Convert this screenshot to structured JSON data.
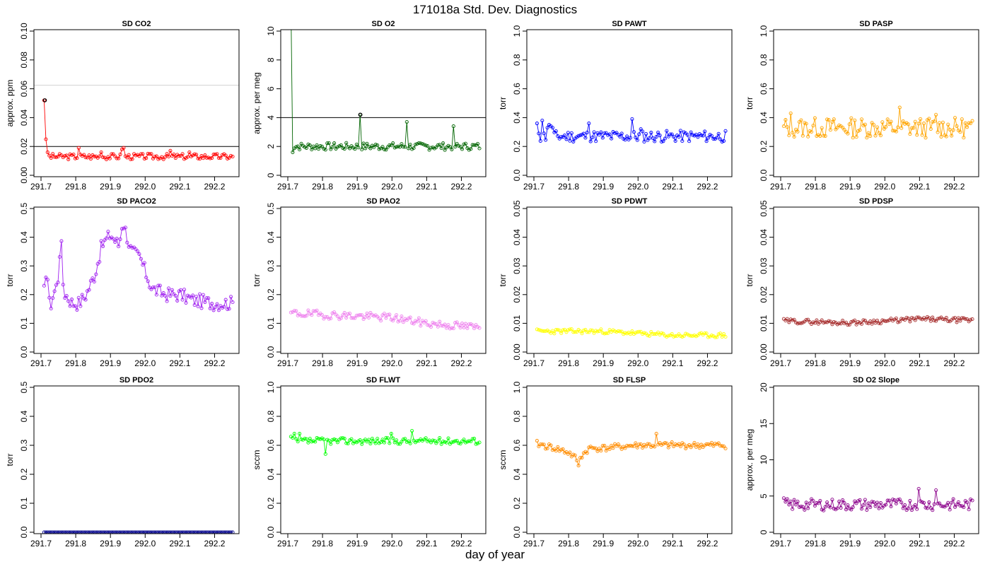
{
  "figure": {
    "title": "171018a   Std. Dev. Diagnostics",
    "xlabel": "day of year"
  },
  "chart_data": [
    {
      "type": "scatter",
      "title": "SD CO2",
      "xlabel": "",
      "ylabel": "approx. ppm",
      "xlim": [
        291.7,
        292.25
      ],
      "xticks": [
        291.7,
        291.8,
        291.9,
        292.0,
        292.1,
        292.2
      ],
      "ylim": [
        0,
        0.1
      ],
      "yticks": [
        0.0,
        0.02,
        0.04,
        0.06,
        0.08,
        0.1
      ],
      "ydecimals": 2,
      "color": "#ff0000",
      "connect": true,
      "hlines": [
        {
          "value": 0.02,
          "color": "#000000"
        },
        {
          "value": 0.0625,
          "color": "#d3d3d3"
        }
      ],
      "highlight": [
        {
          "x": 291.711,
          "y": 0.052
        }
      ],
      "series": [
        {
          "base": 0.013,
          "amp": 0.002,
          "n": 110,
          "spikes": [
            [
              0,
              0.052
            ],
            [
              1,
              0.025
            ],
            [
              2,
              0.016
            ],
            [
              20,
              0.019
            ],
            [
              33,
              0.016
            ],
            [
              45,
              0.018
            ],
            [
              46,
              0.019
            ],
            [
              60,
              0.015
            ],
            [
              73,
              0.017
            ],
            [
              84,
              0.016
            ]
          ],
          "seed": 3
        }
      ]
    },
    {
      "type": "scatter",
      "title": "SD O2",
      "xlabel": "",
      "ylabel": "approx. per meg",
      "xlim": [
        291.7,
        292.25
      ],
      "xticks": [
        291.7,
        291.8,
        291.9,
        292.0,
        292.1,
        292.2
      ],
      "ylim": [
        0,
        10
      ],
      "yticks": [
        0,
        2,
        4,
        6,
        8,
        10
      ],
      "ydecimals": 0,
      "color": "#006400",
      "connect": true,
      "hlines": [
        {
          "value": 4,
          "color": "#000000"
        }
      ],
      "highlight": [
        {
          "x": 291.909,
          "y": 4.2
        }
      ],
      "series": [
        {
          "base": 2.0,
          "amp": 0.25,
          "n": 110,
          "spikes": [
            [
              0,
              12
            ],
            [
              1,
              1.6
            ],
            [
              40,
              4.2
            ],
            [
              67,
              3.7
            ],
            [
              94,
              3.4
            ]
          ],
          "seed": 7
        }
      ]
    },
    {
      "type": "scatter",
      "title": "SD PAWT",
      "xlabel": "",
      "ylabel": "torr",
      "xlim": [
        291.7,
        292.25
      ],
      "xticks": [
        291.7,
        291.8,
        291.9,
        292.0,
        292.1,
        292.2
      ],
      "ylim": [
        0,
        1
      ],
      "yticks": [
        0.0,
        0.2,
        0.4,
        0.6,
        0.8,
        1.0
      ],
      "ydecimals": 1,
      "color": "#0000ff",
      "connect": true,
      "hlines": [],
      "highlight": [],
      "series": [
        {
          "base": 0.27,
          "amp": 0.04,
          "n": 110,
          "spikes": [
            [
              0,
              0.36
            ],
            [
              1,
              0.29
            ],
            [
              3,
              0.38
            ],
            [
              6,
              0.33
            ],
            [
              7,
              0.35
            ],
            [
              8,
              0.34
            ],
            [
              9,
              0.33
            ],
            [
              30,
              0.36
            ],
            [
              55,
              0.39
            ],
            [
              60,
              0.32
            ]
          ],
          "seed": 11
        }
      ]
    },
    {
      "type": "scatter",
      "title": "SD PASP",
      "xlabel": "",
      "ylabel": "torr",
      "xlim": [
        291.7,
        292.25
      ],
      "xticks": [
        291.7,
        291.8,
        291.9,
        292.0,
        292.1,
        292.2
      ],
      "ylim": [
        0,
        1
      ],
      "yticks": [
        0.0,
        0.2,
        0.4,
        0.6,
        0.8,
        1.0
      ],
      "ydecimals": 1,
      "color": "#ffa500",
      "connect": true,
      "hlines": [],
      "highlight": [],
      "series": [
        {
          "base": 0.33,
          "amp": 0.07,
          "n": 110,
          "spikes": [
            [
              4,
              0.43
            ],
            [
              67,
              0.47
            ],
            [
              88,
              0.42
            ]
          ],
          "seed": 13
        }
      ]
    },
    {
      "type": "scatter",
      "title": "SD PACO2",
      "xlabel": "",
      "ylabel": "torr",
      "xlim": [
        291.7,
        292.25
      ],
      "xticks": [
        291.7,
        291.8,
        291.9,
        292.0,
        292.1,
        292.2
      ],
      "ylim": [
        0,
        0.5
      ],
      "yticks": [
        0.0,
        0.1,
        0.2,
        0.3,
        0.4,
        0.5
      ],
      "ydecimals": 1,
      "color": "#a020f0",
      "connect": true,
      "hlines": [],
      "highlight": [],
      "series": [
        {
          "profile": [
            [
              291.709,
              0.21
            ],
            [
              291.716,
              0.31
            ],
            [
              291.725,
              0.15
            ],
            [
              291.735,
              0.2
            ],
            [
              291.748,
              0.24
            ],
            [
              291.757,
              0.41
            ],
            [
              291.765,
              0.21
            ],
            [
              291.79,
              0.17
            ],
            [
              291.81,
              0.17
            ],
            [
              291.83,
              0.2
            ],
            [
              291.855,
              0.27
            ],
            [
              291.875,
              0.37
            ],
            [
              291.9,
              0.41
            ],
            [
              291.925,
              0.37
            ],
            [
              291.935,
              0.46
            ],
            [
              291.96,
              0.35
            ],
            [
              291.985,
              0.33
            ],
            [
              292.0,
              0.28
            ],
            [
              292.02,
              0.22
            ],
            [
              292.06,
              0.2
            ],
            [
              292.1,
              0.2
            ],
            [
              292.14,
              0.18
            ],
            [
              292.2,
              0.17
            ],
            [
              292.25,
              0.17
            ]
          ],
          "amp": 0.025,
          "n": 110,
          "seed": 17
        }
      ]
    },
    {
      "type": "scatter",
      "title": "SD PAO2",
      "xlabel": "",
      "ylabel": "torr",
      "xlim": [
        291.7,
        292.25
      ],
      "xticks": [
        291.7,
        291.8,
        291.9,
        292.0,
        292.1,
        292.2
      ],
      "ylim": [
        0,
        0.5
      ],
      "yticks": [
        0.0,
        0.1,
        0.2,
        0.3,
        0.4,
        0.5
      ],
      "ydecimals": 1,
      "color": "#ee82ee",
      "connect": true,
      "hlines": [],
      "highlight": [],
      "series": [
        {
          "profile": [
            [
              291.709,
              0.135
            ],
            [
              291.8,
              0.13
            ],
            [
              291.9,
              0.125
            ],
            [
              292.0,
              0.12
            ],
            [
              292.1,
              0.1
            ],
            [
              292.25,
              0.085
            ]
          ],
          "amp": 0.014,
          "n": 110,
          "seed": 19
        }
      ]
    },
    {
      "type": "scatter",
      "title": "SD PDWT",
      "xlabel": "",
      "ylabel": "torr",
      "xlim": [
        291.7,
        292.25
      ],
      "xticks": [
        291.7,
        291.8,
        291.9,
        292.0,
        292.1,
        292.2
      ],
      "ylim": [
        0,
        0.05
      ],
      "yticks": [
        0.0,
        0.01,
        0.02,
        0.03,
        0.04,
        0.05
      ],
      "ydecimals": 2,
      "color": "#ffff00",
      "connect": true,
      "hlines": [],
      "highlight": [],
      "series": [
        {
          "profile": [
            [
              291.709,
              0.0072
            ],
            [
              291.9,
              0.0072
            ],
            [
              292.0,
              0.0065
            ],
            [
              292.1,
              0.0058
            ],
            [
              292.25,
              0.0058
            ]
          ],
          "amp": 0.0008,
          "n": 110,
          "seed": 23
        }
      ]
    },
    {
      "type": "scatter",
      "title": "SD PDSP",
      "xlabel": "",
      "ylabel": "torr",
      "xlim": [
        291.7,
        292.25
      ],
      "xticks": [
        291.7,
        291.8,
        291.9,
        292.0,
        292.1,
        292.2
      ],
      "ylim": [
        0,
        0.05
      ],
      "yticks": [
        0.0,
        0.01,
        0.02,
        0.03,
        0.04,
        0.05
      ],
      "ydecimals": 2,
      "color": "#a52a2a",
      "connect": true,
      "hlines": [],
      "highlight": [],
      "series": [
        {
          "profile": [
            [
              291.709,
              0.0108
            ],
            [
              291.9,
              0.0102
            ],
            [
              292.0,
              0.0108
            ],
            [
              292.1,
              0.0115
            ],
            [
              292.25,
              0.011
            ]
          ],
          "amp": 0.0008,
          "n": 110,
          "seed": 29
        }
      ]
    },
    {
      "type": "scatter",
      "title": "SD PDO2",
      "xlabel": "",
      "ylabel": "torr",
      "xlim": [
        291.7,
        292.25
      ],
      "xticks": [
        291.7,
        291.8,
        291.9,
        292.0,
        292.1,
        292.2
      ],
      "ylim": [
        0,
        0.5
      ],
      "yticks": [
        0.0,
        0.1,
        0.2,
        0.3,
        0.4,
        0.5
      ],
      "ydecimals": 1,
      "color": "#00008b",
      "connect": true,
      "hlines": [],
      "highlight": [],
      "series": [
        {
          "base": 0.0,
          "amp": 0.0,
          "n": 110,
          "seed": 31
        }
      ]
    },
    {
      "type": "scatter",
      "title": "SD FLWT",
      "xlabel": "",
      "ylabel": "sccm",
      "xlim": [
        291.7,
        292.25
      ],
      "xticks": [
        291.7,
        291.8,
        291.9,
        292.0,
        292.1,
        292.2
      ],
      "ylim": [
        0,
        1
      ],
      "yticks": [
        0.0,
        0.2,
        0.4,
        0.6,
        0.8,
        1.0
      ],
      "ydecimals": 1,
      "color": "#00ff00",
      "connect": true,
      "hlines": [],
      "highlight": [],
      "series": [
        {
          "base": 0.63,
          "amp": 0.022,
          "n": 110,
          "spikes": [
            [
              0,
              0.66
            ],
            [
              2,
              0.68
            ],
            [
              5,
              0.68
            ],
            [
              20,
              0.54
            ],
            [
              58,
              0.68
            ],
            [
              70,
              0.7
            ]
          ],
          "seed": 37
        }
      ]
    },
    {
      "type": "scatter",
      "title": "SD FLSP",
      "xlabel": "",
      "ylabel": "sccm",
      "xlim": [
        291.7,
        292.25
      ],
      "xticks": [
        291.7,
        291.8,
        291.9,
        292.0,
        292.1,
        292.2
      ],
      "ylim": [
        0,
        1
      ],
      "yticks": [
        0.0,
        0.2,
        0.4,
        0.6,
        0.8,
        1.0
      ],
      "ydecimals": 1,
      "color": "#ff8c00",
      "connect": true,
      "hlines": [],
      "highlight": [],
      "series": [
        {
          "profile": [
            [
              291.709,
              0.61
            ],
            [
              291.76,
              0.58
            ],
            [
              291.8,
              0.55
            ],
            [
              291.825,
              0.5
            ],
            [
              291.86,
              0.58
            ],
            [
              291.9,
              0.58
            ],
            [
              292.0,
              0.6
            ],
            [
              292.1,
              0.6
            ],
            [
              292.25,
              0.6
            ]
          ],
          "amp": 0.022,
          "n": 110,
          "spikes": [
            [
              24,
              0.46
            ],
            [
              69,
              0.68
            ]
          ],
          "seed": 41
        }
      ]
    },
    {
      "type": "scatter",
      "title": "SD O2 Slope",
      "xlabel": "",
      "ylabel": "approx. per meg",
      "xlim": [
        291.7,
        292.25
      ],
      "xticks": [
        291.7,
        291.8,
        291.9,
        292.0,
        292.1,
        292.2
      ],
      "ylim": [
        0,
        20
      ],
      "yticks": [
        0,
        5,
        10,
        15,
        20
      ],
      "ydecimals": 0,
      "color": "#8b008b",
      "connect": true,
      "hlines": [],
      "highlight": [],
      "series": [
        {
          "base": 3.8,
          "amp": 0.8,
          "n": 110,
          "spikes": [
            [
              0,
              4.7
            ],
            [
              78,
              6.0
            ],
            [
              88,
              5.8
            ]
          ],
          "seed": 43
        }
      ]
    }
  ]
}
